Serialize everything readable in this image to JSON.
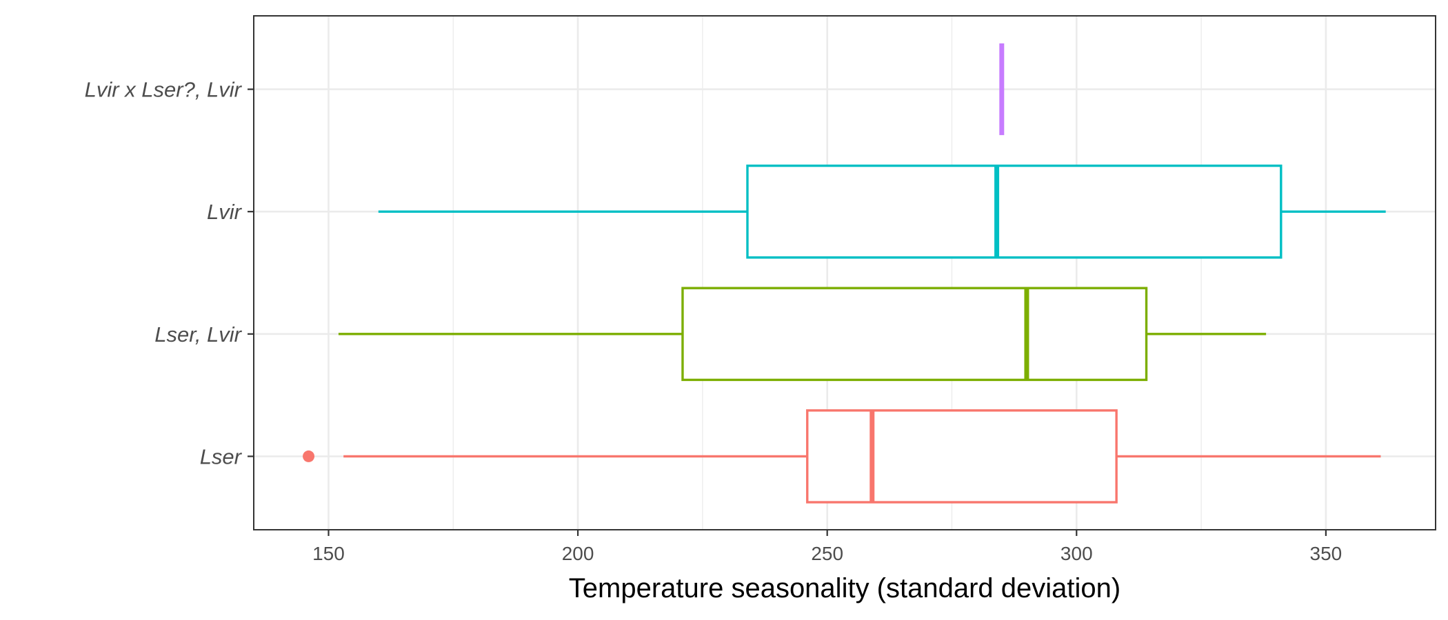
{
  "chart_data": {
    "type": "boxplot",
    "orientation": "horizontal",
    "title": "",
    "xlabel": "Temperature seasonality (standard deviation)",
    "ylabel": "",
    "xlim": [
      135,
      372
    ],
    "x_ticks": [
      150,
      200,
      250,
      300,
      350
    ],
    "grid": true,
    "categories": [
      "Lvir x Lser?, Lvir",
      "Lvir",
      "Lser, Lvir",
      "Lser"
    ],
    "series": [
      {
        "category": "Lvir x Lser?, Lvir",
        "color": "#C77CFF",
        "whisker_low": 285,
        "q1": 285,
        "median": 285,
        "q3": 285,
        "whisker_high": 285,
        "outliers": []
      },
      {
        "category": "Lvir",
        "color": "#00BFC4",
        "whisker_low": 160,
        "q1": 234,
        "median": 284,
        "q3": 341,
        "whisker_high": 362,
        "outliers": []
      },
      {
        "category": "Lser, Lvir",
        "color": "#7CAE00",
        "whisker_low": 152,
        "q1": 221,
        "median": 290,
        "q3": 314,
        "whisker_high": 338,
        "outliers": []
      },
      {
        "category": "Lser",
        "color": "#F8766D",
        "whisker_low": 153,
        "q1": 246,
        "median": 259,
        "q3": 308,
        "whisker_high": 361,
        "outliers": [
          146
        ]
      }
    ]
  }
}
